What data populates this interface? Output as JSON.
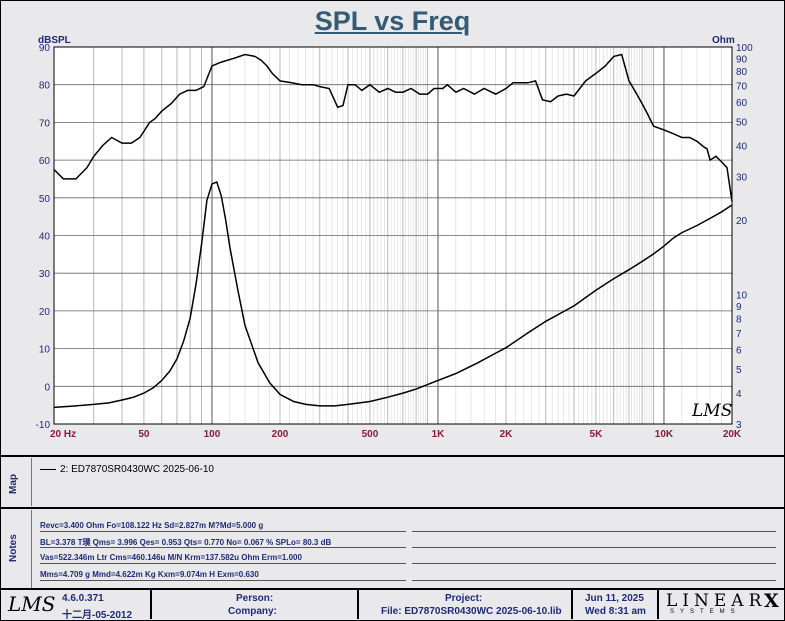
{
  "chart_data": {
    "type": "line",
    "title": "SPL vs Freq",
    "left_axis": {
      "label": "dBSPL",
      "ylim": [
        -10,
        90
      ],
      "ticks": [
        90,
        80,
        70,
        60,
        50,
        40,
        30,
        20,
        10,
        0,
        -10
      ]
    },
    "right_axis": {
      "label": "Ohm",
      "scale": "log",
      "ylim": [
        3,
        100
      ],
      "ticks": [
        100,
        90,
        80,
        70,
        60,
        50,
        40,
        30,
        20,
        10,
        9,
        8,
        7,
        6,
        5,
        4,
        3
      ]
    },
    "x_axis": {
      "scale": "log",
      "xlim": [
        20,
        20000
      ],
      "tick_labels": [
        {
          "v": 20,
          "t": "20  Hz"
        },
        {
          "v": 50,
          "t": "50"
        },
        {
          "v": 100,
          "t": "100"
        },
        {
          "v": 200,
          "t": "200"
        },
        {
          "v": 500,
          "t": "500"
        },
        {
          "v": 1000,
          "t": "1K"
        },
        {
          "v": 2000,
          "t": "2K"
        },
        {
          "v": 5000,
          "t": "5K"
        },
        {
          "v": 10000,
          "t": "10K"
        },
        {
          "v": 20000,
          "t": "20K"
        }
      ]
    },
    "grid": true,
    "series": [
      {
        "name": "SPL",
        "axis": "left",
        "color": "#000000",
        "x": [
          20,
          22,
          25,
          28,
          30,
          33,
          36,
          40,
          44,
          48,
          53,
          56,
          60,
          66,
          72,
          78,
          85,
          92,
          100,
          110,
          125,
          140,
          155,
          165,
          175,
          185,
          200,
          225,
          250,
          280,
          300,
          330,
          360,
          380,
          400,
          430,
          460,
          500,
          550,
          600,
          650,
          700,
          760,
          830,
          900,
          960,
          1000,
          1050,
          1100,
          1200,
          1300,
          1450,
          1600,
          1800,
          2000,
          2150,
          2350,
          2500,
          2700,
          2900,
          3150,
          3400,
          3700,
          4000,
          4500,
          5000,
          5500,
          6000,
          6500,
          7000,
          7500,
          8000,
          8500,
          9000,
          10000,
          11000,
          12000,
          13000,
          14000,
          15000,
          15500,
          16000,
          17000,
          18000,
          19000,
          20000
        ],
        "y": [
          57.5,
          55,
          55,
          58,
          61,
          64,
          66,
          64.5,
          64.5,
          66,
          70,
          71,
          73,
          75,
          77.5,
          78.5,
          78.5,
          79.5,
          85,
          86,
          87,
          88,
          87.5,
          86.5,
          85,
          83,
          81,
          80.5,
          80,
          80,
          79.5,
          79,
          74,
          74.5,
          80,
          80,
          78.5,
          80,
          78,
          79,
          78,
          78,
          79,
          77.5,
          77.5,
          79,
          79,
          79,
          80,
          78,
          79,
          77.5,
          79,
          77.5,
          79,
          80.5,
          80.5,
          80.5,
          81,
          76,
          75.5,
          77,
          77.5,
          77,
          81,
          83,
          85,
          87.5,
          88,
          81,
          78,
          75,
          72,
          69,
          68,
          67,
          66,
          66,
          65,
          63.5,
          63,
          60,
          61,
          59.5,
          58,
          49
        ]
      },
      {
        "name": "Impedance",
        "axis": "right",
        "color": "#000000",
        "x": [
          20,
          25,
          30,
          35,
          40,
          45,
          50,
          55,
          60,
          65,
          70,
          75,
          80,
          85,
          90,
          95,
          100,
          105,
          110,
          115,
          120,
          130,
          140,
          160,
          180,
          200,
          230,
          260,
          300,
          350,
          400,
          450,
          500,
          600,
          700,
          800,
          1000,
          1200,
          1500,
          1800,
          2000,
          2500,
          3000,
          4000,
          5000,
          6000,
          7000,
          8000,
          9000,
          10000,
          11000,
          12000,
          14000,
          16000,
          18000,
          20000
        ],
        "y": [
          3.5,
          3.55,
          3.6,
          3.65,
          3.75,
          3.85,
          4.0,
          4.2,
          4.5,
          4.9,
          5.5,
          6.5,
          8.0,
          11.0,
          16.0,
          24.0,
          28.0,
          28.5,
          25.0,
          20.0,
          15.5,
          10.5,
          7.5,
          5.3,
          4.4,
          3.95,
          3.7,
          3.6,
          3.55,
          3.55,
          3.6,
          3.65,
          3.7,
          3.85,
          4.0,
          4.15,
          4.5,
          4.8,
          5.3,
          5.8,
          6.1,
          7.0,
          7.8,
          9.0,
          10.4,
          11.6,
          12.6,
          13.6,
          14.6,
          15.7,
          16.9,
          17.8,
          19.0,
          20.3,
          21.6,
          23.0
        ]
      }
    ]
  },
  "header": {
    "title": "SPL vs Freq",
    "left_unit": "dBSPL",
    "right_unit": "Ohm"
  },
  "watermark": "LMS",
  "map": {
    "label": "Map",
    "legend": "2: ED7870SR0430WC 2025-06-10"
  },
  "notes": {
    "label": "Notes",
    "lines": [
      "Revc=3.400 Ohm  Fo=108.122 Hz  Sd=2.827m M?Md=5.000 g",
      "BL=3.378 T璞  Qms= 3.996  Qes= 0.953  Qts= 0.770  No= 0.067 %  SPLo= 80.3 dB",
      "Vas=522.346m Ltr  Cms=460.146u M/N  Krm=137.582u Ohm  Erm=1.000",
      "Mms=4.709 g  Mmd=4.622m Kg  Kxm=9.074m H  Exm=0.630"
    ]
  },
  "footer": {
    "logo": "LMS",
    "version": "4.6.0.371",
    "version_date": "十二月-05-2012",
    "person_label": "Person:",
    "company_label": "Company:",
    "project_label": "Project:",
    "file_label": "File: ED7870SR0430WC 2025-06-10.lib",
    "date": "Jun 11, 2025",
    "time": "Wed  8:31 am",
    "brand": "LINEAR",
    "brand_x": "X",
    "brand_sub": "SYSTEMS"
  }
}
